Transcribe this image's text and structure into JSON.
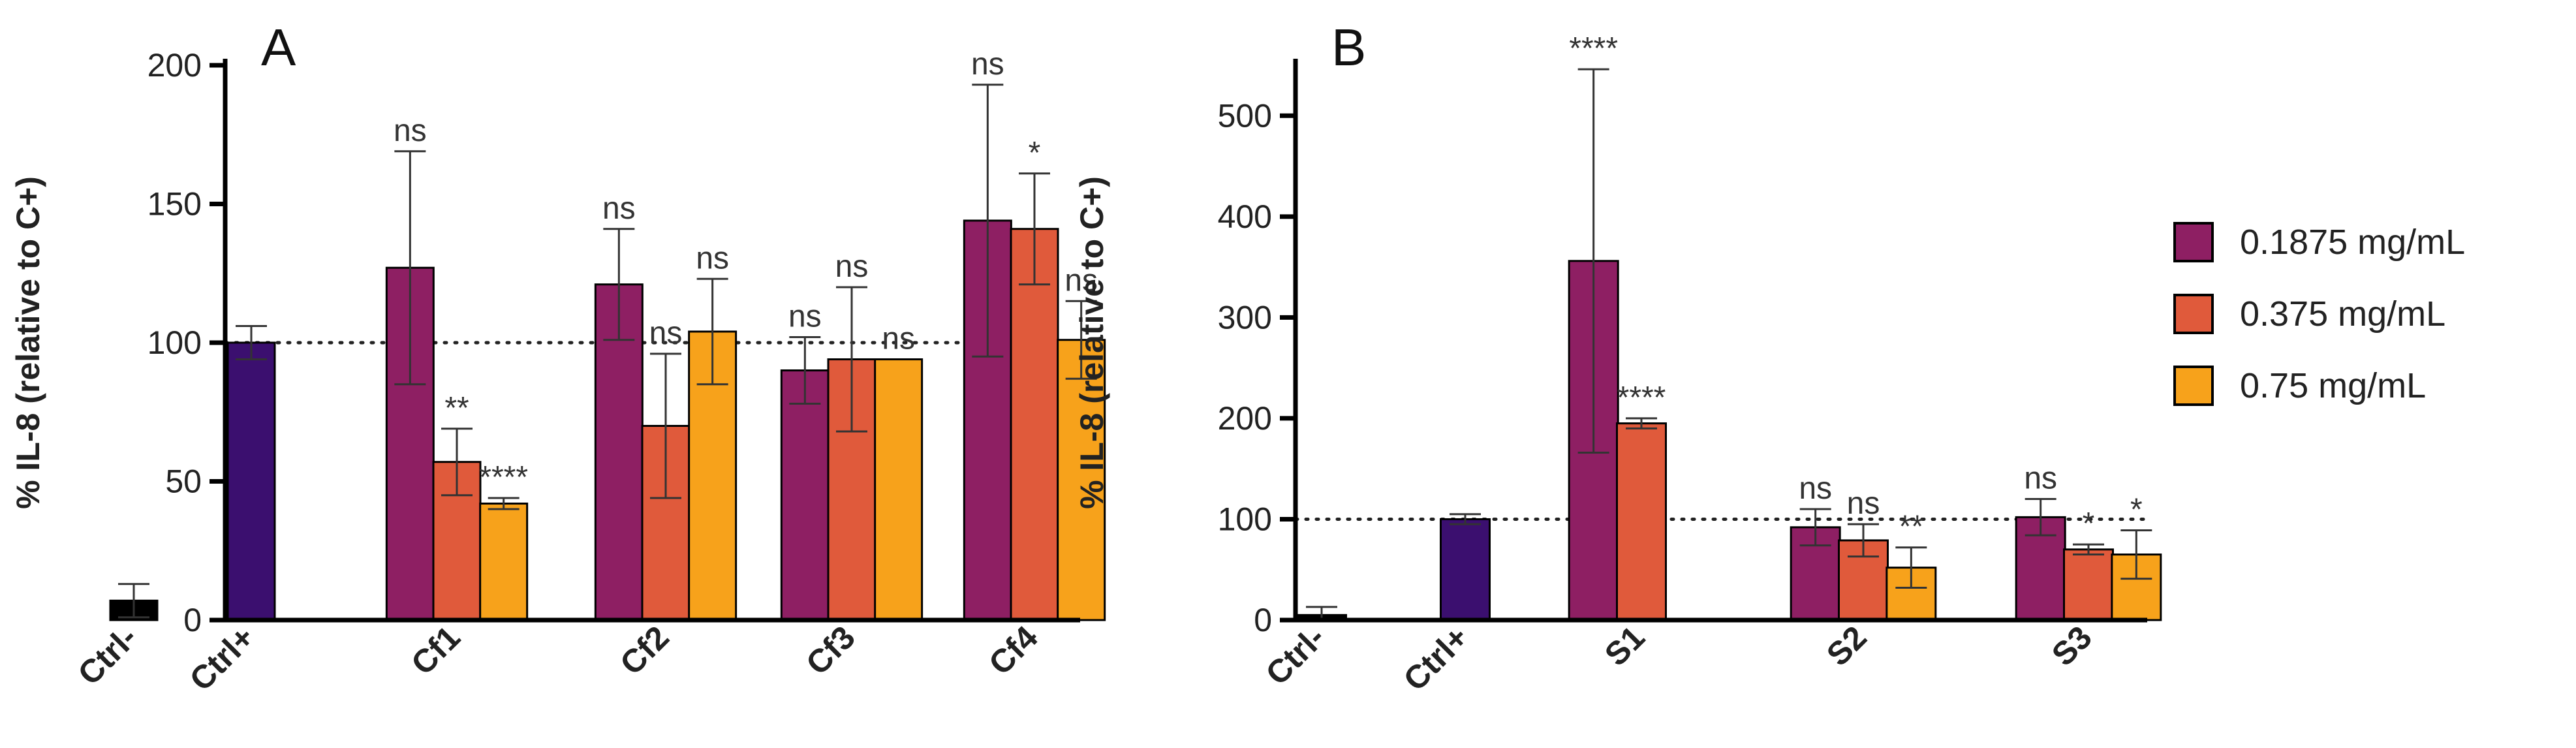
{
  "colors": {
    "ctrl_minus": "#000000",
    "ctrl_plus": "#3b0f6f",
    "s1875": "#8e1f63",
    "s375": "#e05a3b",
    "s75": "#f7a21b"
  },
  "legend": {
    "items": [
      {
        "label": "0.1875 mg/mL",
        "color": "#8e1f63"
      },
      {
        "label": "0.375 mg/mL",
        "color": "#e05a3b"
      },
      {
        "label": "0.75 mg/mL",
        "color": "#f7a21b"
      }
    ]
  },
  "chart_data": [
    {
      "panel": "A",
      "type": "bar",
      "ylabel": "% IL-8  (relative to C+)",
      "ylim": [
        0,
        200
      ],
      "yticks": [
        0,
        50,
        100,
        150,
        200
      ],
      "reference_line": 100,
      "groups": [
        {
          "label": "Ctrl-",
          "bars": [
            {
              "value": 7,
              "err": 6,
              "color": "#000000",
              "sig": ""
            }
          ]
        },
        {
          "label": "Ctrl+",
          "bars": [
            {
              "value": 100,
              "err": 6,
              "color": "#3b0f6f",
              "sig": ""
            }
          ]
        },
        {
          "label": "Cf1",
          "bars": [
            {
              "value": 127,
              "err": 42,
              "color": "#8e1f63",
              "sig": "ns"
            },
            {
              "value": 57,
              "err": 12,
              "color": "#e05a3b",
              "sig": "**"
            },
            {
              "value": 42,
              "err": 2,
              "color": "#f7a21b",
              "sig": "****"
            }
          ]
        },
        {
          "label": "Cf2",
          "bars": [
            {
              "value": 121,
              "err": 20,
              "color": "#8e1f63",
              "sig": "ns"
            },
            {
              "value": 70,
              "err": 26,
              "color": "#e05a3b",
              "sig": "ns"
            },
            {
              "value": 104,
              "err": 19,
              "color": "#f7a21b",
              "sig": "ns"
            }
          ]
        },
        {
          "label": "Cf3",
          "bars": [
            {
              "value": 90,
              "err": 12,
              "color": "#8e1f63",
              "sig": "ns"
            },
            {
              "value": 94,
              "err": 26,
              "color": "#e05a3b",
              "sig": "ns"
            },
            {
              "value": 94,
              "err": 0,
              "color": "#f7a21b",
              "sig": "ns"
            }
          ]
        },
        {
          "label": "Cf4",
          "bars": [
            {
              "value": 144,
              "err": 49,
              "color": "#8e1f63",
              "sig": "ns"
            },
            {
              "value": 141,
              "err": 20,
              "color": "#e05a3b",
              "sig": "*"
            },
            {
              "value": 101,
              "err": 14,
              "color": "#f7a21b",
              "sig": "ns"
            }
          ]
        }
      ]
    },
    {
      "panel": "B",
      "type": "bar",
      "ylabel": "% IL-8  (relative to C+)",
      "ylim": [
        0,
        550
      ],
      "yticks": [
        0,
        100,
        200,
        300,
        400,
        500
      ],
      "reference_line": 100,
      "groups": [
        {
          "label": "Ctrl-",
          "bars": [
            {
              "value": 5,
              "err": 8,
              "color": "#000000",
              "sig": ""
            }
          ]
        },
        {
          "label": "Ctrl+",
          "bars": [
            {
              "value": 100,
              "err": 5,
              "color": "#3b0f6f",
              "sig": ""
            }
          ]
        },
        {
          "label": "S1",
          "bars": [
            {
              "value": 356,
              "err": 190,
              "color": "#8e1f63",
              "sig": "****"
            },
            {
              "value": 195,
              "err": 5,
              "color": "#e05a3b",
              "sig": "****"
            }
          ]
        },
        {
          "label": "S2",
          "bars": [
            {
              "value": 92,
              "err": 18,
              "color": "#8e1f63",
              "sig": "ns"
            },
            {
              "value": 79,
              "err": 16,
              "color": "#e05a3b",
              "sig": "ns"
            },
            {
              "value": 52,
              "err": 20,
              "color": "#f7a21b",
              "sig": "**"
            }
          ]
        },
        {
          "label": "S3",
          "bars": [
            {
              "value": 102,
              "err": 18,
              "color": "#8e1f63",
              "sig": "ns"
            },
            {
              "value": 70,
              "err": 5,
              "color": "#e05a3b",
              "sig": "*"
            },
            {
              "value": 65,
              "err": 24,
              "color": "#f7a21b",
              "sig": "*"
            }
          ]
        }
      ]
    }
  ]
}
